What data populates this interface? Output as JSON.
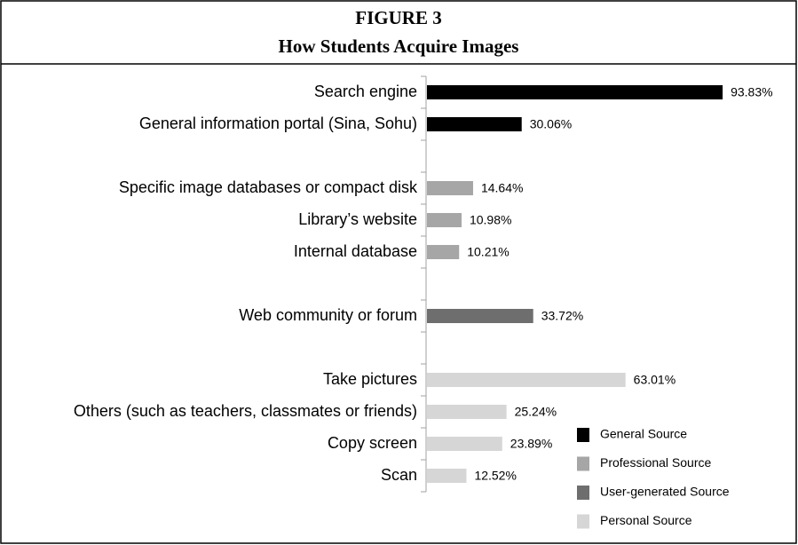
{
  "chart_data": {
    "type": "bar",
    "orientation": "horizontal",
    "title": "FIGURE 3",
    "subtitle": "How Students Acquire Images",
    "categories": [
      "Search engine",
      "General information portal (Sina, Sohu)",
      null,
      "Specific image databases or compact disk",
      "Library’s website",
      "Internal database",
      null,
      "Web community or forum",
      null,
      "Take pictures",
      "Others (such as teachers, classmates or friends)",
      "Copy screen",
      "Scan"
    ],
    "xlim": [
      0,
      100
    ],
    "series": [
      {
        "name": "General Source",
        "color": "#000000",
        "values": [
          93.83,
          30.06,
          null,
          null,
          null,
          null,
          null,
          null,
          null,
          null,
          null,
          null,
          null
        ],
        "value_labels": [
          "93.83%",
          "30.06%",
          null,
          null,
          null,
          null,
          null,
          null,
          null,
          null,
          null,
          null,
          null
        ]
      },
      {
        "name": "Professional Source",
        "color": "#a6a6a6",
        "values": [
          null,
          null,
          null,
          14.64,
          10.98,
          10.21,
          null,
          null,
          null,
          null,
          null,
          null,
          null
        ],
        "value_labels": [
          null,
          null,
          null,
          "14.64%",
          "10.98%",
          "10.21%",
          null,
          null,
          null,
          null,
          null,
          null,
          null
        ]
      },
      {
        "name": "User-generated Source",
        "color": "#6e6e6e",
        "values": [
          null,
          null,
          null,
          null,
          null,
          null,
          null,
          33.72,
          null,
          null,
          null,
          null,
          null
        ],
        "value_labels": [
          null,
          null,
          null,
          null,
          null,
          null,
          null,
          "33.72%",
          null,
          null,
          null,
          null,
          null
        ]
      },
      {
        "name": "Personal Source",
        "color": "#d6d6d6",
        "values": [
          null,
          null,
          null,
          null,
          null,
          null,
          null,
          null,
          null,
          63.01,
          25.24,
          23.89,
          12.52
        ],
        "value_labels": [
          null,
          null,
          null,
          null,
          null,
          null,
          null,
          null,
          null,
          "63.01%",
          "25.24%",
          "23.89%",
          "12.52%"
        ]
      }
    ],
    "legend": "lower-right"
  }
}
